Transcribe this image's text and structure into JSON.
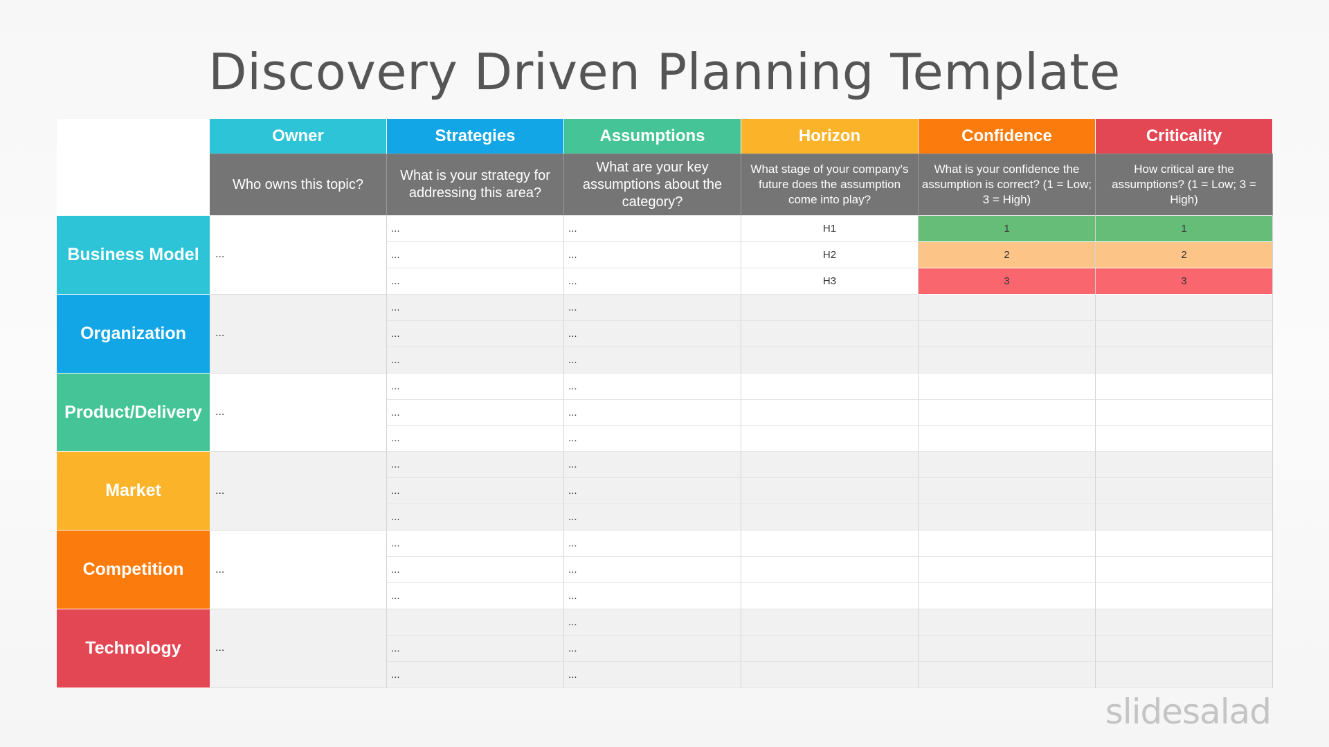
{
  "title": "Discovery Driven Planning Template",
  "logo_text": "slidesalad",
  "colors": {
    "teal": "#2cc4d6",
    "blue": "#12a6e7",
    "green": "#44c497",
    "yellow": "#fbb42a",
    "orange": "#fb7b0d",
    "red": "#e44754",
    "header_gray": "#757575",
    "level_1": "#66bd78",
    "level_2": "#fdc487",
    "level_3": "#f9666d"
  },
  "columns": [
    {
      "label": "Owner",
      "question": "Who owns this topic?",
      "color": "#2cc4d6"
    },
    {
      "label": "Strategies",
      "question": "What is your strategy for addressing this area?",
      "color": "#12a6e7"
    },
    {
      "label": "Assumptions",
      "question": "What are your key assumptions about the category?",
      "color": "#44c497"
    },
    {
      "label": "Horizon",
      "question": "What stage of your company's future does the assumption come into play?",
      "color": "#fbb42a"
    },
    {
      "label": "Confidence",
      "question": "What is your confidence the assumption is correct? (1 = Low; 3 = High)",
      "color": "#fb7b0d"
    },
    {
      "label": "Criticality",
      "question": "How critical are the assumptions? (1 = Low; 3 = High)",
      "color": "#e44754"
    }
  ],
  "rows": [
    {
      "category": "Business Model",
      "color": "#2cc4d6",
      "owner": "...",
      "sub": [
        {
          "strategy": "...",
          "assumption": "...",
          "horizon": "H1",
          "confidence": "1",
          "criticality": "1"
        },
        {
          "strategy": "...",
          "assumption": "...",
          "horizon": "H2",
          "confidence": "2",
          "criticality": "2"
        },
        {
          "strategy": "...",
          "assumption": "...",
          "horizon": "H3",
          "confidence": "3",
          "criticality": "3"
        }
      ]
    },
    {
      "category": "Organization",
      "color": "#12a6e7",
      "owner": "...",
      "sub": [
        {
          "strategy": "...",
          "assumption": "...",
          "horizon": "",
          "confidence": "",
          "criticality": ""
        },
        {
          "strategy": "...",
          "assumption": "...",
          "horizon": "",
          "confidence": "",
          "criticality": ""
        },
        {
          "strategy": "...",
          "assumption": "...",
          "horizon": "",
          "confidence": "",
          "criticality": ""
        }
      ]
    },
    {
      "category": "Product/Delivery",
      "color": "#44c497",
      "owner": "...",
      "sub": [
        {
          "strategy": "...",
          "assumption": "...",
          "horizon": "",
          "confidence": "",
          "criticality": ""
        },
        {
          "strategy": "...",
          "assumption": "...",
          "horizon": "",
          "confidence": "",
          "criticality": ""
        },
        {
          "strategy": "...",
          "assumption": "...",
          "horizon": "",
          "confidence": "",
          "criticality": ""
        }
      ]
    },
    {
      "category": "Market",
      "color": "#fbb42a",
      "owner": "...",
      "sub": [
        {
          "strategy": "...",
          "assumption": "...",
          "horizon": "",
          "confidence": "",
          "criticality": ""
        },
        {
          "strategy": "...",
          "assumption": "...",
          "horizon": "",
          "confidence": "",
          "criticality": ""
        },
        {
          "strategy": "...",
          "assumption": "...",
          "horizon": "",
          "confidence": "",
          "criticality": ""
        }
      ]
    },
    {
      "category": "Competition",
      "color": "#fb7b0d",
      "owner": "...",
      "sub": [
        {
          "strategy": "...",
          "assumption": "...",
          "horizon": "",
          "confidence": "",
          "criticality": ""
        },
        {
          "strategy": "...",
          "assumption": "...",
          "horizon": "",
          "confidence": "",
          "criticality": ""
        },
        {
          "strategy": "...",
          "assumption": "...",
          "horizon": "",
          "confidence": "",
          "criticality": ""
        }
      ]
    },
    {
      "category": "Technology",
      "color": "#e44754",
      "owner": "...",
      "sub": [
        {
          "strategy": "",
          "assumption": "...",
          "horizon": "",
          "confidence": "",
          "criticality": ""
        },
        {
          "strategy": "...",
          "assumption": "...",
          "horizon": "",
          "confidence": "",
          "criticality": ""
        },
        {
          "strategy": "...",
          "assumption": "...",
          "horizon": "",
          "confidence": "",
          "criticality": ""
        }
      ]
    }
  ]
}
